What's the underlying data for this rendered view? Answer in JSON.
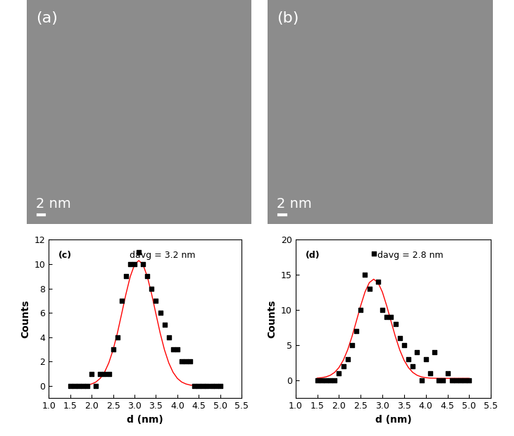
{
  "chart_data": [
    {
      "type": "image",
      "annotations": [
        "(a)",
        "2 nm"
      ]
    },
    {
      "type": "image",
      "annotations": [
        "(b)",
        "2 nm"
      ]
    },
    {
      "type": "scatter_fit",
      "annotations": [
        "(c)",
        "davg = 3.2 nm"
      ],
      "x_label": "d (nm)",
      "y_label": "Counts",
      "x": [
        1.5,
        1.6,
        1.7,
        1.8,
        1.9,
        2.0,
        2.1,
        2.2,
        2.3,
        2.4,
        2.5,
        2.6,
        2.7,
        2.8,
        2.9,
        3.0,
        3.1,
        3.2,
        3.3,
        3.4,
        3.5,
        3.6,
        3.7,
        3.8,
        3.9,
        4.0,
        4.1,
        4.2,
        4.3,
        4.4,
        4.5,
        4.6,
        4.7,
        4.8,
        4.9,
        5.0
      ],
      "series": [
        {
          "type": "scatter",
          "color": "#000000",
          "marker": "square",
          "values": [
            0,
            0,
            0,
            0,
            0,
            1,
            0,
            1,
            1,
            1,
            3,
            4,
            7,
            9,
            10,
            10,
            11,
            10,
            9,
            8,
            7,
            6,
            5,
            4,
            3,
            3,
            2,
            2,
            2,
            0,
            0,
            0,
            0,
            0,
            0,
            0
          ]
        },
        {
          "type": "line",
          "color": "#ff0000",
          "values": [
            0,
            0,
            0.01,
            0.03,
            0.07,
            0.16,
            0.32,
            0.62,
            1.12,
            1.89,
            2.96,
            4.33,
            5.92,
            7.54,
            8.97,
            9.95,
            10.3,
            9.95,
            8.97,
            7.54,
            5.92,
            4.33,
            2.96,
            1.89,
            1.12,
            0.62,
            0.32,
            0.16,
            0.07,
            0.03,
            0.01,
            0,
            0,
            0,
            0,
            0
          ]
        }
      ],
      "xlim": [
        1.0,
        5.5
      ],
      "xticks": [
        {
          "value": 1.0,
          "label": "1.0"
        },
        {
          "value": 1.5,
          "label": "1.5"
        },
        {
          "value": 2.0,
          "label": "2.0"
        },
        {
          "value": 2.5,
          "label": "2.5"
        },
        {
          "value": 3.0,
          "label": "3.0"
        },
        {
          "value": 3.5,
          "label": "3.5"
        },
        {
          "value": 4.0,
          "label": "4.0"
        },
        {
          "value": 4.5,
          "label": "4.5"
        },
        {
          "value": 5.0,
          "label": "5.0"
        },
        {
          "value": 5.5,
          "label": "5.5"
        }
      ],
      "ylim": [
        -1,
        12
      ],
      "yticks": [
        0,
        2,
        4,
        6,
        8,
        10,
        12
      ]
    },
    {
      "type": "scatter_fit",
      "annotations": [
        "(d)",
        "davg = 2.8 nm"
      ],
      "x_label": "d (nm)",
      "y_label": "Counts",
      "x": [
        1.5,
        1.6,
        1.7,
        1.8,
        1.9,
        2.0,
        2.1,
        2.2,
        2.3,
        2.4,
        2.5,
        2.6,
        2.7,
        2.8,
        2.9,
        3.0,
        3.1,
        3.2,
        3.3,
        3.4,
        3.5,
        3.6,
        3.7,
        3.8,
        3.9,
        4.0,
        4.1,
        4.2,
        4.3,
        4.4,
        4.5,
        4.6,
        4.7,
        4.8,
        4.9,
        5.0
      ],
      "series": [
        {
          "type": "scatter",
          "color": "#000000",
          "marker": "square",
          "values": [
            0,
            0,
            0,
            0,
            0,
            1,
            2,
            3,
            5,
            7,
            10,
            15,
            13,
            18,
            14,
            10,
            9,
            9,
            8,
            6,
            5,
            3,
            2,
            4,
            0,
            3,
            1,
            4,
            0,
            0,
            1,
            0,
            0,
            0,
            0,
            0
          ]
        },
        {
          "type": "line",
          "color": "#ff0000",
          "values": [
            0.34,
            0.4,
            0.51,
            0.74,
            1.15,
            1.84,
            2.88,
            4.35,
            6.24,
            8.41,
            10.62,
            12.58,
            13.92,
            14.4,
            13.92,
            12.58,
            10.62,
            8.41,
            6.24,
            4.35,
            2.88,
            1.84,
            1.15,
            0.74,
            0.51,
            0.4,
            0.34,
            0.32,
            0.3,
            0.3,
            0.3,
            0.3,
            0.3,
            0.3,
            0.3,
            0.3
          ]
        }
      ],
      "xlim": [
        1.0,
        5.5
      ],
      "xticks": [
        {
          "value": 1.0,
          "label": "1.0"
        },
        {
          "value": 1.5,
          "label": "1.5"
        },
        {
          "value": 2.0,
          "label": "2.0"
        },
        {
          "value": 2.5,
          "label": "2.5"
        },
        {
          "value": 3.0,
          "label": "3.0"
        },
        {
          "value": 3.5,
          "label": "3.5"
        },
        {
          "value": 4.0,
          "label": "4.0"
        },
        {
          "value": 4.5,
          "label": "4.5"
        },
        {
          "value": 5.0,
          "label": "5.0"
        },
        {
          "value": 5.5,
          "label": "5.5"
        }
      ],
      "ylim": [
        -2.5,
        20
      ],
      "yticks": [
        0,
        5,
        10,
        15,
        20
      ]
    }
  ]
}
